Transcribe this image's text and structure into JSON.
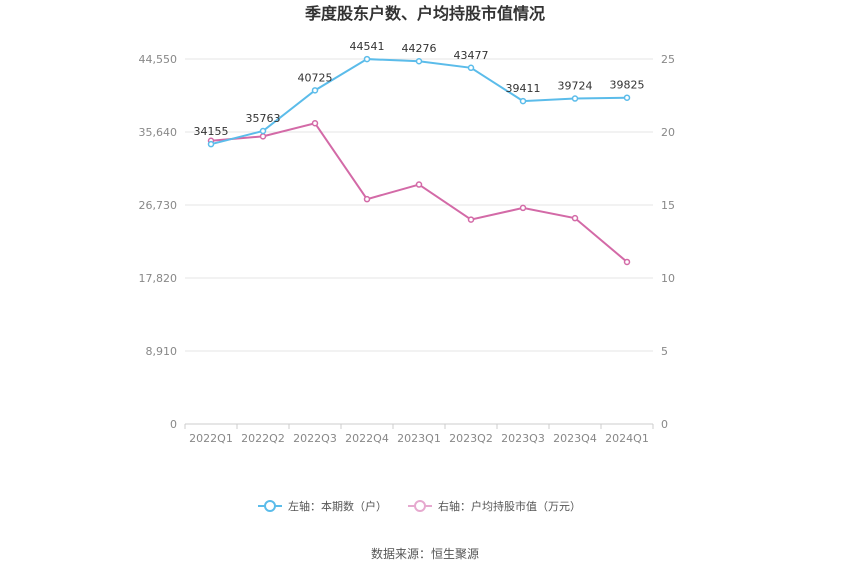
{
  "chart_data": {
    "type": "line",
    "title": "季度股东户数、户均持股市值情况",
    "categories": [
      "2022Q1",
      "2022Q2",
      "2022Q3",
      "2022Q4",
      "2023Q1",
      "2023Q2",
      "2023Q3",
      "2023Q4",
      "2024Q1"
    ],
    "left_axis": {
      "ylim": [
        0,
        44550
      ],
      "ticks": [
        "0",
        "8,910",
        "17,820",
        "26,730",
        "35,640",
        "44,550"
      ]
    },
    "right_axis": {
      "ylim": [
        0,
        25
      ],
      "ticks": [
        "0",
        "5",
        "10",
        "15",
        "20",
        "25"
      ]
    },
    "series": [
      {
        "name": "左轴：本期数（户）",
        "axis": "left",
        "color": "#5bbcea",
        "values": [
          34155,
          35763,
          40725,
          44541,
          44276,
          43477,
          39411,
          39724,
          39825
        ],
        "labels": [
          "34155",
          "35763",
          "40725",
          "44541",
          "44276",
          "43477",
          "39411",
          "39724",
          "39825"
        ]
      },
      {
        "name": "右轴：户均持股市值（万元）",
        "axis": "right",
        "color": "#d36aa7",
        "values": [
          19.4,
          19.7,
          20.6,
          15.4,
          16.4,
          14.0,
          14.8,
          14.1,
          11.1
        ]
      }
    ],
    "grid": true,
    "legend_position": "bottom"
  },
  "source": "数据来源：恒生聚源"
}
